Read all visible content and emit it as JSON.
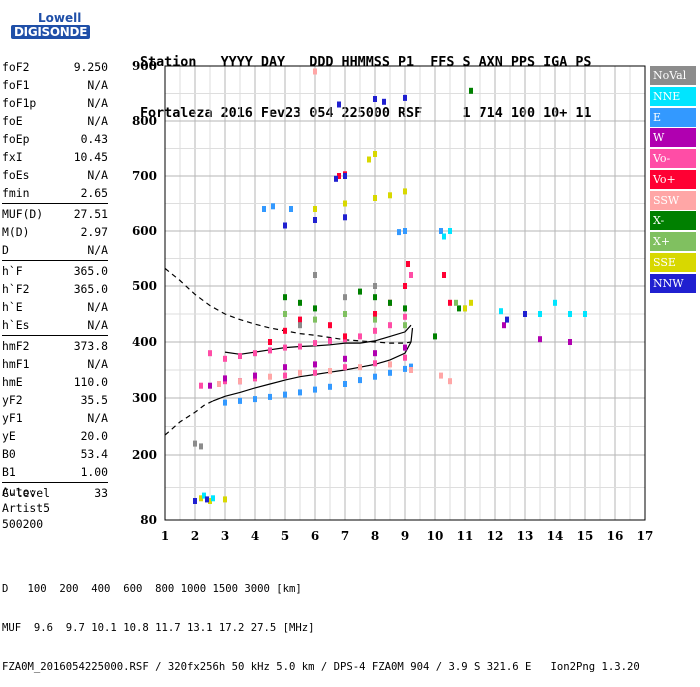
{
  "logo": {
    "line1": "Lowell",
    "line2": "DIGISONDE"
  },
  "header": {
    "labels": [
      "Station",
      "YYYY",
      "DAY",
      "DDD",
      "HHMMSS",
      "P1",
      "FFS",
      "S",
      "AXN",
      "PPS",
      "IGA",
      "PS"
    ],
    "values": [
      "Fortaleza",
      "2016",
      "Fev23",
      "054",
      "225000",
      "RSF",
      "",
      "1",
      "714",
      "100",
      "10+",
      "11"
    ],
    "line1": "Station   YYYY DAY   DDD HHMMSS P1  FFS S AXN PPS IGA PS",
    "line2": "Fortaleza 2016 Fev23 054 225000 RSF     1 714 100 10+ 11"
  },
  "parameters": [
    [
      {
        "name": "foF2",
        "value": "9.250"
      },
      {
        "name": "foF1",
        "value": "N/A"
      },
      {
        "name": "foF1p",
        "value": "N/A"
      },
      {
        "name": "foE",
        "value": "N/A"
      },
      {
        "name": "foEp",
        "value": "0.43"
      },
      {
        "name": "fxI",
        "value": "10.45"
      },
      {
        "name": "foEs",
        "value": "N/A"
      },
      {
        "name": "fmin",
        "value": "2.65"
      }
    ],
    [
      {
        "name": "MUF(D)",
        "value": "27.51"
      },
      {
        "name": "M(D)",
        "value": "2.97"
      },
      {
        "name": "D",
        "value": "N/A"
      }
    ],
    [
      {
        "name": "h`F",
        "value": "365.0"
      },
      {
        "name": "h`F2",
        "value": "365.0"
      },
      {
        "name": "h`E",
        "value": "N/A"
      },
      {
        "name": "h`Es",
        "value": "N/A"
      }
    ],
    [
      {
        "name": "hmF2",
        "value": "373.8"
      },
      {
        "name": "hmF1",
        "value": "N/A"
      },
      {
        "name": "hmE",
        "value": "110.0"
      },
      {
        "name": "yF2",
        "value": "35.5"
      },
      {
        "name": "yF1",
        "value": "N/A"
      },
      {
        "name": "yE",
        "value": "20.0"
      },
      {
        "name": "B0",
        "value": "53.4"
      },
      {
        "name": "B1",
        "value": "1.00"
      }
    ],
    [
      {
        "name": "C-level",
        "value": "33"
      }
    ]
  ],
  "auto": {
    "line1": "Auto:",
    "line2": "Artist5",
    "line3": "500200"
  },
  "legend": [
    {
      "label": "NoVal",
      "color": "#8c8c8c"
    },
    {
      "label": "NNE",
      "color": "#00e5ff"
    },
    {
      "label": "E",
      "color": "#3399ff"
    },
    {
      "label": "W",
      "color": "#b000b0"
    },
    {
      "label": "Vo-",
      "color": "#ff4da6"
    },
    {
      "label": "Vo+",
      "color": "#ff0033"
    },
    {
      "label": "SSW",
      "color": "#ffa6a6"
    },
    {
      "label": "X-",
      "color": "#008000"
    },
    {
      "label": "X+",
      "color": "#80c060"
    },
    {
      "label": "SSE",
      "color": "#d8d800"
    },
    {
      "label": "NNW",
      "color": "#2020d0"
    }
  ],
  "chart_data": {
    "type": "scatter",
    "title": "",
    "xlabel": "",
    "ylabel": "",
    "xlim": [
      1,
      17
    ],
    "ylim": [
      80,
      900
    ],
    "x_ticks": [
      1,
      2,
      3,
      4,
      5,
      6,
      7,
      8,
      9,
      10,
      11,
      12,
      13,
      14,
      15,
      16,
      17
    ],
    "y_ticks": [
      80,
      200,
      300,
      400,
      500,
      600,
      700,
      800,
      900
    ],
    "grid": true,
    "series": [
      {
        "name": "E",
        "color": "#3399ff",
        "points": [
          [
            3.0,
            292
          ],
          [
            3.5,
            295
          ],
          [
            4.0,
            298
          ],
          [
            4.5,
            302
          ],
          [
            5.0,
            306
          ],
          [
            5.5,
            310
          ],
          [
            6.0,
            315
          ],
          [
            6.5,
            320
          ],
          [
            7.0,
            325
          ],
          [
            7.5,
            332
          ],
          [
            8.0,
            338
          ],
          [
            8.5,
            345
          ],
          [
            9.0,
            352
          ],
          [
            9.2,
            356
          ],
          [
            4.3,
            640
          ],
          [
            4.6,
            645
          ],
          [
            5.2,
            640
          ],
          [
            8.8,
            598
          ],
          [
            9.0,
            600
          ],
          [
            10.2,
            600
          ]
        ]
      },
      {
        "name": "Vo-",
        "color": "#ff4da6",
        "points": [
          [
            2.5,
            380
          ],
          [
            3.0,
            370
          ],
          [
            3.5,
            375
          ],
          [
            4.0,
            380
          ],
          [
            4.5,
            385
          ],
          [
            5.0,
            390
          ],
          [
            5.5,
            392
          ],
          [
            6.0,
            398
          ],
          [
            6.5,
            402
          ],
          [
            7.0,
            405
          ],
          [
            7.5,
            410
          ],
          [
            8.0,
            420
          ],
          [
            8.5,
            430
          ],
          [
            9.0,
            445
          ],
          [
            9.2,
            520
          ],
          [
            2.2,
            322
          ],
          [
            3.0,
            330
          ],
          [
            4.0,
            335
          ],
          [
            5.0,
            340
          ],
          [
            6.0,
            345
          ],
          [
            7.0,
            355
          ],
          [
            8.0,
            362
          ],
          [
            9.0,
            372
          ]
        ]
      },
      {
        "name": "Vo+",
        "color": "#ff0033",
        "points": [
          [
            4.5,
            400
          ],
          [
            5.0,
            420
          ],
          [
            5.5,
            440
          ],
          [
            6.5,
            430
          ],
          [
            7.0,
            410
          ],
          [
            8.0,
            450
          ],
          [
            8.5,
            470
          ],
          [
            9.0,
            500
          ],
          [
            9.1,
            540
          ],
          [
            6.8,
            700
          ],
          [
            7.0,
            703
          ],
          [
            10.3,
            520
          ],
          [
            10.5,
            470
          ]
        ]
      },
      {
        "name": "W",
        "color": "#b000b0",
        "points": [
          [
            2.5,
            322
          ],
          [
            3.0,
            335
          ],
          [
            3.5,
            330
          ],
          [
            4.0,
            340
          ],
          [
            5.0,
            355
          ],
          [
            6.0,
            360
          ],
          [
            7.0,
            370
          ],
          [
            8.0,
            380
          ],
          [
            9.0,
            390
          ],
          [
            12.3,
            430
          ],
          [
            13.5,
            405
          ],
          [
            14.5,
            400
          ]
        ]
      },
      {
        "name": "X-",
        "color": "#008000",
        "points": [
          [
            5.0,
            480
          ],
          [
            5.5,
            470
          ],
          [
            6.0,
            460
          ],
          [
            7.5,
            490
          ],
          [
            8.0,
            480
          ],
          [
            8.5,
            470
          ],
          [
            9.0,
            460
          ],
          [
            10.0,
            410
          ],
          [
            10.8,
            460
          ],
          [
            11.2,
            855
          ]
        ]
      },
      {
        "name": "X+",
        "color": "#80c060",
        "points": [
          [
            5.0,
            450
          ],
          [
            6.0,
            440
          ],
          [
            7.0,
            450
          ],
          [
            8.0,
            440
          ],
          [
            9.0,
            430
          ],
          [
            10.7,
            470
          ],
          [
            11.0,
            460
          ]
        ]
      },
      {
        "name": "SSE",
        "color": "#d8d800",
        "points": [
          [
            2.2,
            120
          ],
          [
            2.5,
            115
          ],
          [
            3.0,
            118
          ],
          [
            6.0,
            640
          ],
          [
            7.0,
            650
          ],
          [
            8.0,
            660
          ],
          [
            8.5,
            665
          ],
          [
            9.0,
            672
          ],
          [
            7.8,
            730
          ],
          [
            8.0,
            740
          ],
          [
            11.0,
            460
          ],
          [
            11.2,
            470
          ]
        ]
      },
      {
        "name": "NNE",
        "color": "#00e5ff",
        "points": [
          [
            2.3,
            125
          ],
          [
            2.6,
            120
          ],
          [
            10.3,
            590
          ],
          [
            10.5,
            600
          ],
          [
            12.2,
            455
          ],
          [
            13.5,
            450
          ],
          [
            14.0,
            470
          ],
          [
            14.5,
            450
          ],
          [
            15.0,
            450
          ]
        ]
      },
      {
        "name": "NNW",
        "color": "#2020d0",
        "points": [
          [
            2.0,
            115
          ],
          [
            2.4,
            118
          ],
          [
            6.8,
            830
          ],
          [
            8.0,
            840
          ],
          [
            8.3,
            835
          ],
          [
            9.0,
            842
          ],
          [
            6.7,
            695
          ],
          [
            7.0,
            700
          ],
          [
            12.4,
            440
          ],
          [
            13.0,
            450
          ],
          [
            5.0,
            610
          ],
          [
            6.0,
            620
          ],
          [
            7.0,
            625
          ]
        ]
      },
      {
        "name": "SSW",
        "color": "#ffa6a6",
        "points": [
          [
            2.8,
            325
          ],
          [
            3.5,
            330
          ],
          [
            4.5,
            338
          ],
          [
            5.5,
            345
          ],
          [
            6.5,
            348
          ],
          [
            7.5,
            355
          ],
          [
            8.5,
            360
          ],
          [
            9.2,
            350
          ],
          [
            10.2,
            340
          ],
          [
            10.5,
            330
          ],
          [
            6.0,
            890
          ]
        ]
      },
      {
        "name": "NoVal",
        "color": "#8c8c8c",
        "points": [
          [
            2.0,
            220
          ],
          [
            2.2,
            215
          ],
          [
            5.5,
            430
          ],
          [
            6.0,
            520
          ],
          [
            7.0,
            480
          ],
          [
            8.0,
            500
          ]
        ]
      }
    ],
    "traces": [
      {
        "name": "dashed",
        "style": "dashed",
        "points": [
          [
            1.0,
            532
          ],
          [
            1.5,
            510
          ],
          [
            2.0,
            485
          ],
          [
            2.5,
            465
          ],
          [
            3.0,
            450
          ],
          [
            3.5,
            440
          ],
          [
            4.0,
            432
          ],
          [
            4.5,
            425
          ],
          [
            5.0,
            420
          ],
          [
            5.5,
            415
          ],
          [
            6.0,
            412
          ],
          [
            6.5,
            408
          ],
          [
            7.0,
            404
          ],
          [
            7.5,
            402
          ],
          [
            8.0,
            400
          ],
          [
            8.5,
            398
          ],
          [
            9.0,
            398
          ],
          [
            9.2,
            400
          ]
        ]
      },
      {
        "name": "dashed-low",
        "style": "dashed",
        "points": [
          [
            1.0,
            235
          ],
          [
            1.5,
            258
          ],
          [
            2.0,
            275
          ],
          [
            2.3,
            287
          ],
          [
            2.6,
            295
          ]
        ]
      },
      {
        "name": "hprime",
        "style": "solid",
        "points": [
          [
            2.6,
            295
          ],
          [
            3.0,
            303
          ],
          [
            3.5,
            310
          ],
          [
            4.0,
            318
          ],
          [
            4.5,
            325
          ],
          [
            5.0,
            332
          ],
          [
            5.5,
            338
          ],
          [
            6.0,
            342
          ],
          [
            6.5,
            346
          ],
          [
            7.0,
            350
          ],
          [
            7.5,
            355
          ],
          [
            8.0,
            360
          ],
          [
            8.5,
            368
          ],
          [
            9.0,
            380
          ],
          [
            9.2,
            400
          ],
          [
            9.25,
            425
          ]
        ]
      },
      {
        "name": "upper",
        "style": "solid",
        "points": [
          [
            3.0,
            382
          ],
          [
            3.5,
            378
          ],
          [
            4.0,
            382
          ],
          [
            4.5,
            386
          ],
          [
            5.0,
            390
          ],
          [
            5.5,
            392
          ],
          [
            6.0,
            393
          ],
          [
            6.5,
            395
          ],
          [
            7.0,
            398
          ],
          [
            7.5,
            398
          ],
          [
            8.0,
            402
          ],
          [
            8.5,
            410
          ],
          [
            9.0,
            418
          ],
          [
            9.2,
            430
          ]
        ]
      }
    ]
  },
  "footer": {
    "d_label": "D",
    "d_values": "   100  200  400  600  800 1000 1500 3000 [km]",
    "muf_label": "MUF",
    "muf_values": "  9.6  9.7 10.1 10.8 11.7 13.1 17.2 27.5 [MHz]",
    "info": "FZA0M_2016054225000.RSF / 320fx256h 50 kHz 5.0 km / DPS-4 FZA0M 904 / 3.9 S 321.6 E   Ion2Png 1.3.20"
  }
}
